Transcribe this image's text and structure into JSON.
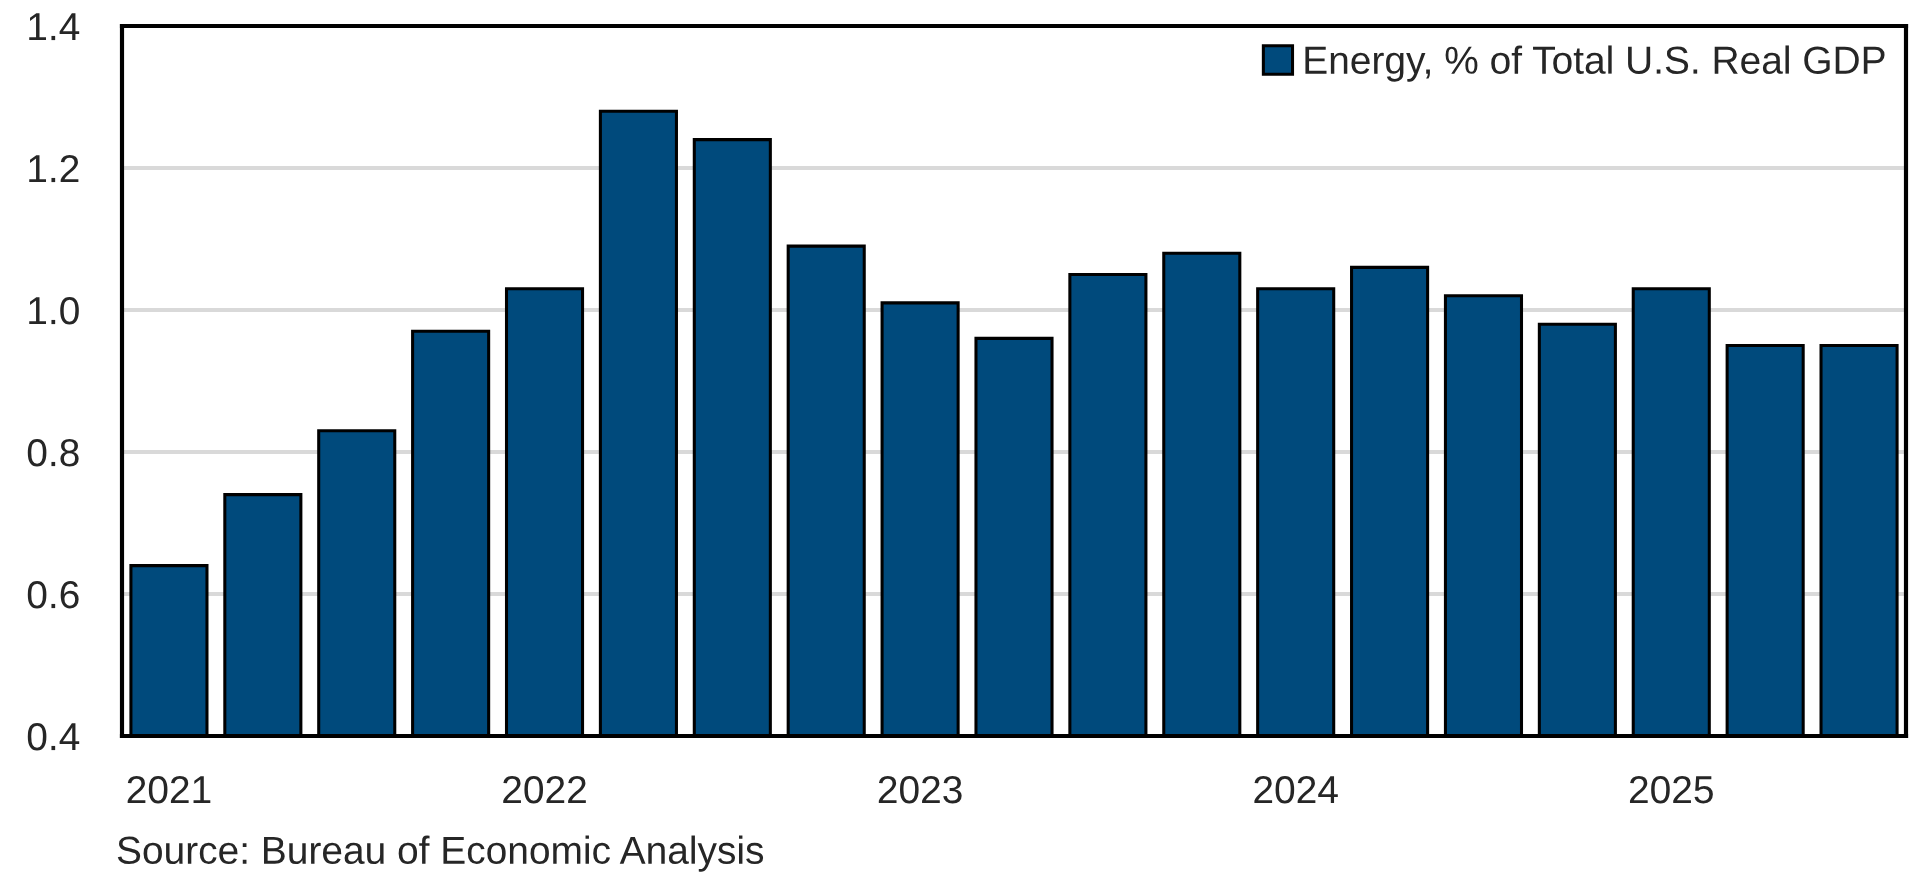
{
  "chart_data": {
    "type": "bar",
    "categories": [
      "2021",
      null,
      null,
      null,
      "2022",
      null,
      null,
      null,
      "2023",
      null,
      null,
      null,
      "2024",
      null,
      null,
      null,
      "2025",
      null,
      null
    ],
    "series": [
      {
        "name": "Energy, % of Total U.S. Real GDP",
        "color": "#004a7c",
        "values": [
          0.64,
          0.74,
          0.83,
          0.97,
          1.03,
          1.28,
          1.24,
          1.09,
          1.01,
          0.96,
          1.05,
          1.08,
          1.03,
          1.06,
          1.02,
          0.98,
          1.03,
          0.95,
          0.95
        ]
      }
    ],
    "ylim": [
      0.4,
      1.4
    ],
    "yticks": [
      0.4,
      0.6,
      0.8,
      {
        "value": 1.0,
        "label": "1.0"
      },
      1.2,
      1.4
    ],
    "grid": "y",
    "legend": "top right",
    "annotations": [
      "Source: Bureau of Economic Analysis"
    ]
  }
}
